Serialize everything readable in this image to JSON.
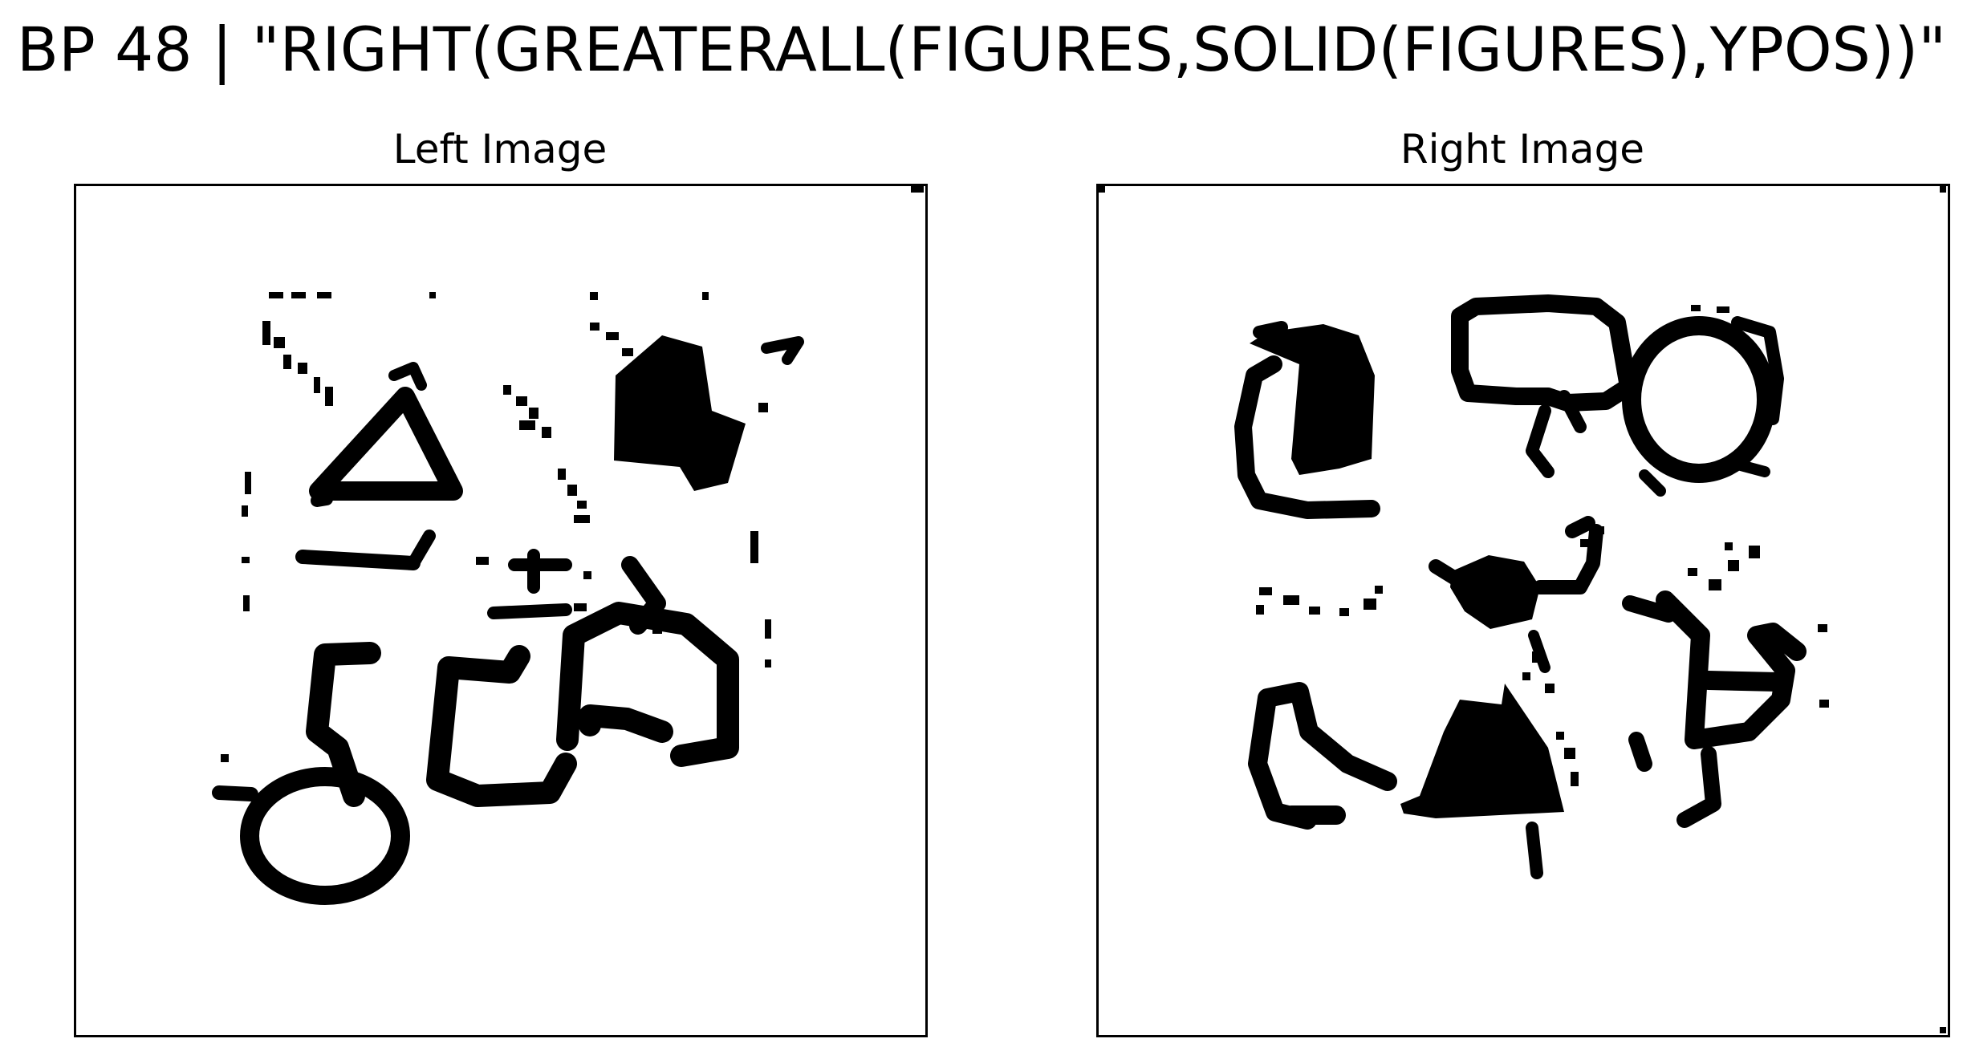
{
  "title": "BP 48 | \"RIGHT(GREATERALL(FIGURES,SOLID(FIGURES),YPOS))\"",
  "panels": {
    "left": {
      "title": "Left Image"
    },
    "right": {
      "title": "Right Image"
    }
  },
  "colors": {
    "ink": "#000000",
    "paper": "#ffffff"
  }
}
